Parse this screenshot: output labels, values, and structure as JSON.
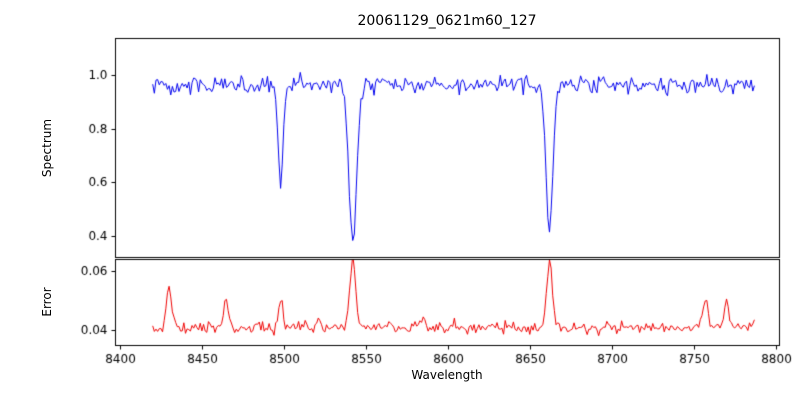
{
  "figure_title": "20061129_0621m60_127",
  "chart_data": [
    {
      "type": "line",
      "series": "spectrum",
      "title": "20061129_0621m60_127",
      "ylabel": "Spectrum",
      "line_color": "#0000ee",
      "xlim": [
        8397,
        8802
      ],
      "ylim": [
        0.32,
        1.14
      ],
      "yticks": [
        0.4,
        0.6,
        0.8,
        1.0
      ],
      "ytick_labels": [
        "0.4",
        "0.6",
        "0.8",
        "1.0"
      ],
      "x_data_range": [
        8420,
        8787
      ],
      "continuum_level": 0.965,
      "noise_sigma": 0.016,
      "absorption_lines": [
        {
          "center": 8498,
          "min_flux": 0.6,
          "sigma": 1.6
        },
        {
          "center": 8542,
          "min_flux": 0.37,
          "sigma": 2.3
        },
        {
          "center": 8662,
          "min_flux": 0.42,
          "sigma": 2.1
        }
      ]
    },
    {
      "type": "line",
      "series": "error",
      "ylabel": "Error",
      "xlabel": "Wavelength",
      "line_color": "#ee0000",
      "xlim": [
        8397,
        8802
      ],
      "ylim": [
        0.0348,
        0.0642
      ],
      "yticks": [
        0.04,
        0.06
      ],
      "ytick_labels": [
        "0.04",
        "0.06"
      ],
      "xticks": [
        8400,
        8450,
        8500,
        8550,
        8600,
        8650,
        8700,
        8750,
        8800
      ],
      "xtick_labels": [
        "8400",
        "8450",
        "8500",
        "8550",
        "8600",
        "8650",
        "8700",
        "8750",
        "8800"
      ],
      "x_data_range": [
        8420,
        8787
      ],
      "baseline_level": 0.0405,
      "noise_sigma": 0.0009,
      "peaks": [
        {
          "center": 8430,
          "height": 0.0555,
          "sigma": 1.5
        },
        {
          "center": 8465,
          "height": 0.0505,
          "sigma": 1.6
        },
        {
          "center": 8498,
          "height": 0.0498,
          "sigma": 1.5
        },
        {
          "center": 8521,
          "height": 0.0448,
          "sigma": 1.2
        },
        {
          "center": 8542,
          "height": 0.0645,
          "sigma": 1.8
        },
        {
          "center": 8585,
          "height": 0.0442,
          "sigma": 1.3
        },
        {
          "center": 8662,
          "height": 0.0638,
          "sigma": 1.7
        },
        {
          "center": 8757,
          "height": 0.0492,
          "sigma": 1.6
        },
        {
          "center": 8770,
          "height": 0.0505,
          "sigma": 1.4
        }
      ]
    }
  ]
}
